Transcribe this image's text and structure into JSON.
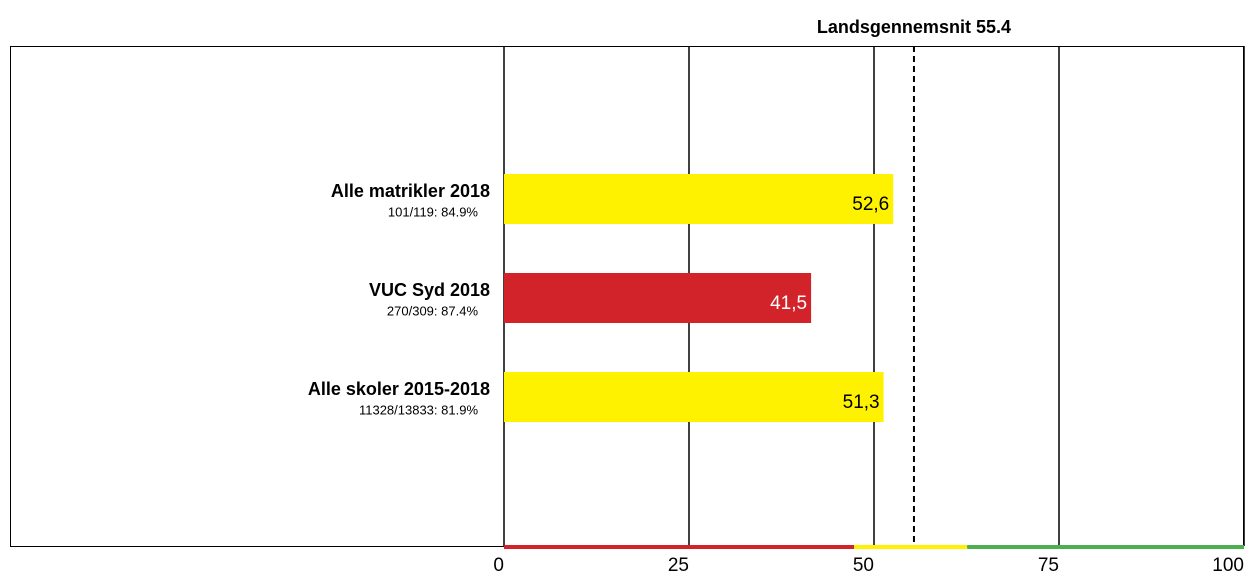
{
  "chart_data": {
    "type": "bar",
    "orientation": "horizontal",
    "categories": [
      "Alle matrikler 2018",
      "VUC Syd 2018",
      "Alle skoler 2015-2018"
    ],
    "sublabels": [
      "101/119: 84.9%",
      "270/309: 87.4%",
      "11328/13833: 81.9%"
    ],
    "values": [
      52.6,
      41.5,
      51.3
    ],
    "value_labels": [
      "52,6",
      "41,5",
      "51,3"
    ],
    "colors": [
      "#fff200",
      "#d2232a",
      "#fff200"
    ],
    "value_label_colors": [
      "#000000",
      "#ffffff",
      "#000000"
    ],
    "xlim": [
      0,
      100
    ],
    "xticks": [
      0,
      25,
      50,
      75,
      100
    ],
    "grid": true,
    "reference_line": {
      "value": 55.4,
      "label": "Landsgennemsnit 55.4"
    },
    "bands": [
      {
        "from": 0,
        "to": 47.3,
        "color": "#d2232a"
      },
      {
        "from": 47.3,
        "to": 62.6,
        "color": "#fff200"
      },
      {
        "from": 62.6,
        "to": 100,
        "color": "#4caf50"
      }
    ]
  }
}
